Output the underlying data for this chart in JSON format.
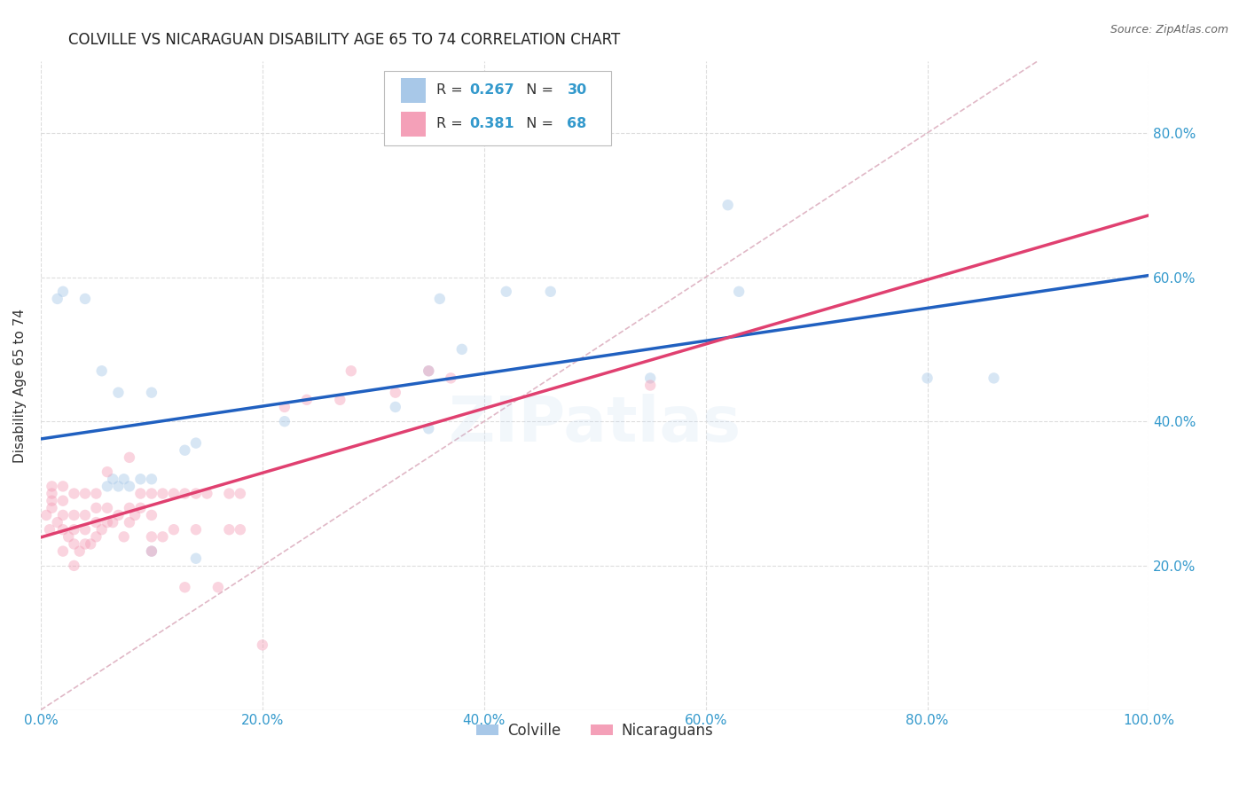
{
  "title": "COLVILLE VS NICARAGUAN DISABILITY AGE 65 TO 74 CORRELATION CHART",
  "source": "Source: ZipAtlas.com",
  "ylabel": "Disability Age 65 to 74",
  "xlim": [
    0.0,
    1.0
  ],
  "ylim": [
    0.0,
    0.9
  ],
  "yticks": [
    0.2,
    0.4,
    0.6,
    0.8
  ],
  "xticks": [
    0.0,
    0.2,
    0.4,
    0.6,
    0.8,
    1.0
  ],
  "xtick_labels": [
    "0.0%",
    "20.0%",
    "40.0%",
    "60.0%",
    "80.0%",
    "100.0%"
  ],
  "ytick_labels": [
    "20.0%",
    "40.0%",
    "60.0%",
    "80.0%"
  ],
  "colville_color": "#a8c8e8",
  "nicaraguan_color": "#f4a0b8",
  "colville_line_color": "#2060c0",
  "nicaraguan_line_color": "#e04070",
  "diagonal_color": "#ddb0c0",
  "R_colville": 0.267,
  "N_colville": 30,
  "R_nicaraguan": 0.381,
  "N_nicaraguan": 68,
  "colville_x": [
    0.015,
    0.02,
    0.04,
    0.055,
    0.06,
    0.065,
    0.07,
    0.075,
    0.08,
    0.09,
    0.1,
    0.1,
    0.1,
    0.13,
    0.14,
    0.14,
    0.22,
    0.32,
    0.35,
    0.38,
    0.42,
    0.46,
    0.55,
    0.62,
    0.63,
    0.8,
    0.86,
    0.35,
    0.36,
    0.07
  ],
  "colville_y": [
    0.57,
    0.58,
    0.57,
    0.47,
    0.31,
    0.32,
    0.31,
    0.32,
    0.31,
    0.32,
    0.32,
    0.44,
    0.22,
    0.36,
    0.37,
    0.21,
    0.4,
    0.42,
    0.39,
    0.5,
    0.58,
    0.58,
    0.46,
    0.7,
    0.58,
    0.46,
    0.46,
    0.47,
    0.57,
    0.44
  ],
  "nicaraguan_x": [
    0.005,
    0.008,
    0.01,
    0.01,
    0.01,
    0.01,
    0.015,
    0.02,
    0.02,
    0.02,
    0.02,
    0.02,
    0.025,
    0.03,
    0.03,
    0.03,
    0.03,
    0.03,
    0.035,
    0.04,
    0.04,
    0.04,
    0.04,
    0.045,
    0.05,
    0.05,
    0.05,
    0.05,
    0.055,
    0.06,
    0.06,
    0.06,
    0.065,
    0.07,
    0.075,
    0.08,
    0.08,
    0.08,
    0.085,
    0.09,
    0.09,
    0.1,
    0.1,
    0.1,
    0.1,
    0.11,
    0.11,
    0.12,
    0.12,
    0.13,
    0.13,
    0.14,
    0.14,
    0.15,
    0.16,
    0.17,
    0.17,
    0.18,
    0.18,
    0.2,
    0.22,
    0.24,
    0.27,
    0.28,
    0.32,
    0.35,
    0.37,
    0.55
  ],
  "nicaraguan_y": [
    0.27,
    0.25,
    0.28,
    0.29,
    0.3,
    0.31,
    0.26,
    0.22,
    0.25,
    0.27,
    0.29,
    0.31,
    0.24,
    0.2,
    0.23,
    0.25,
    0.27,
    0.3,
    0.22,
    0.23,
    0.25,
    0.27,
    0.3,
    0.23,
    0.24,
    0.26,
    0.28,
    0.3,
    0.25,
    0.26,
    0.28,
    0.33,
    0.26,
    0.27,
    0.24,
    0.26,
    0.28,
    0.35,
    0.27,
    0.28,
    0.3,
    0.22,
    0.24,
    0.27,
    0.3,
    0.24,
    0.3,
    0.25,
    0.3,
    0.17,
    0.3,
    0.25,
    0.3,
    0.3,
    0.17,
    0.25,
    0.3,
    0.25,
    0.3,
    0.09,
    0.42,
    0.43,
    0.43,
    0.47,
    0.44,
    0.47,
    0.46,
    0.45
  ],
  "background_color": "#ffffff",
  "grid_color": "#dddddd",
  "tick_color": "#3399cc",
  "source_text": "Source: ZipAtlas.com",
  "legend_label_colville": "Colville",
  "legend_label_nicaraguan": "Nicaraguans",
  "marker_size": 80,
  "marker_alpha": 0.45,
  "watermark_text": "ZIPatlas",
  "watermark_alpha": 0.18
}
